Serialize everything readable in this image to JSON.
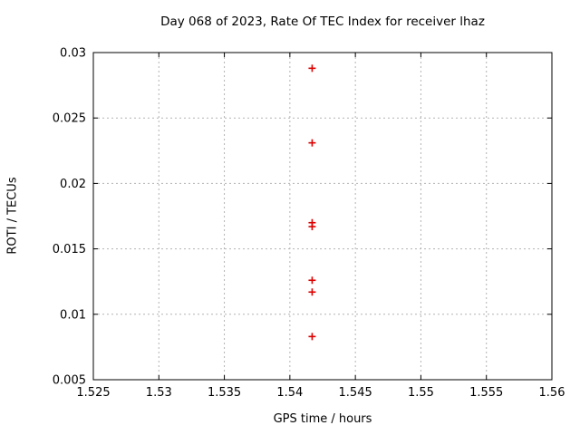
{
  "title": "Day 068 of 2023, Rate Of TEC Index for receiver lhaz",
  "chart_data": {
    "type": "scatter",
    "title": "Day 068 of 2023, Rate Of TEC Index for receiver lhaz",
    "xlabel": "GPS time / hours",
    "ylabel": "ROTI / TECUs",
    "xlim": [
      1.525,
      1.56
    ],
    "ylim": [
      0.005,
      0.03
    ],
    "x_tick_labels": [
      "1.525",
      "1.53",
      "1.535",
      "1.54",
      "1.545",
      "1.55",
      "1.555",
      "1.56"
    ],
    "x_ticks": [
      1.525,
      1.53,
      1.535,
      1.54,
      1.545,
      1.55,
      1.555,
      1.56
    ],
    "y_tick_labels": [
      "0.005",
      "0.01",
      "0.015",
      "0.02",
      "0.025",
      "0.03"
    ],
    "y_ticks": [
      0.005,
      0.01,
      0.015,
      0.02,
      0.025,
      0.03
    ],
    "grid": true,
    "legend_position": "none",
    "series": [
      {
        "name": "ROTI",
        "marker": "plus",
        "color": "#dd0000",
        "points": [
          [
            1.5417,
            0.0288
          ],
          [
            1.5417,
            0.0231
          ],
          [
            1.5417,
            0.017
          ],
          [
            1.5417,
            0.0167
          ],
          [
            1.5417,
            0.0126
          ],
          [
            1.5417,
            0.0117
          ],
          [
            1.5417,
            0.0083
          ]
        ]
      }
    ],
    "colors": {
      "marker": "#dd0000",
      "grid": "#b3b3b3",
      "axis": "#000000",
      "background": "#ffffff"
    }
  }
}
